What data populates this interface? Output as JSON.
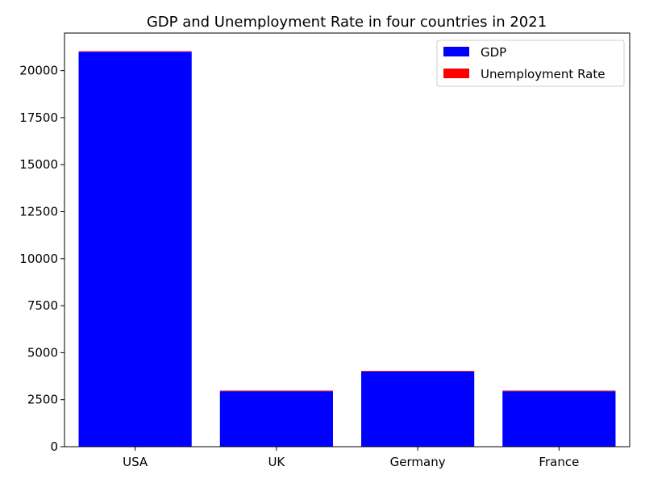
{
  "chart_data": {
    "type": "bar",
    "stacked": true,
    "title": "GDP and Unemployment Rate in four countries in 2021",
    "xlabel": "",
    "ylabel": "",
    "categories": [
      "USA",
      "UK",
      "Germany",
      "France"
    ],
    "series": [
      {
        "name": "GDP",
        "color": "#0000ff",
        "values": [
          21000,
          2950,
          4000,
          2950
        ]
      },
      {
        "name": "Unemployment Rate",
        "color": "#ff0000",
        "values": [
          5.4,
          4.5,
          3.6,
          8.0
        ]
      }
    ],
    "ylim": [
      0,
      22000
    ],
    "yticks": [
      0,
      2500,
      5000,
      7500,
      10000,
      12500,
      15000,
      17500,
      20000
    ],
    "ytick_labels": [
      "0",
      "2500",
      "5000",
      "7500",
      "10000",
      "12500",
      "15000",
      "17500",
      "20000"
    ],
    "grid": false,
    "legend_position": "top-right"
  }
}
